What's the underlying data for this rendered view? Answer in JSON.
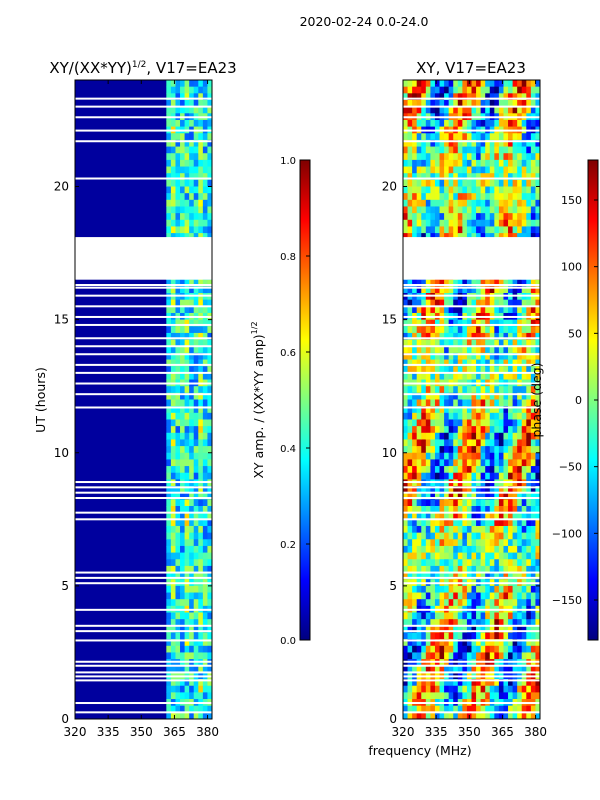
{
  "suptitle": "2020-02-24 0.0-24.0",
  "shared_xlabel": "frequency (MHz)",
  "colors": {
    "jet": [
      "#00007f",
      "#0000ff",
      "#007fff",
      "#00ffff",
      "#7fff7f",
      "#ffff00",
      "#ff7f00",
      "#ff0000",
      "#7f0000"
    ],
    "background_fill": "#00009e",
    "gap": "#ffffff"
  },
  "chart_data": [
    {
      "type": "heatmap",
      "title": "XY/(XX*YY)^{1/2}, V17=EA23",
      "title_plain": "XY/(XX*YY)",
      "title_sup": "1/2",
      "title_tail": ", V17=EA23",
      "xlabel": "",
      "ylabel": "UT (hours)",
      "xlim": [
        320,
        382
      ],
      "ylim": [
        0,
        24
      ],
      "xticks": [
        320,
        335,
        350,
        365,
        380
      ],
      "yticks": [
        0,
        5,
        10,
        15,
        20
      ],
      "bright_band_MHz": [
        360,
        382
      ],
      "missing_time_ranges": [
        [
          16.5,
          18.1
        ]
      ],
      "colorbar": {
        "label": "XY amp. / (XX*YY amp)",
        "label_sup": "1/2",
        "range": [
          0.0,
          1.0
        ],
        "ticks": [
          "0.0",
          "0.2",
          "0.4",
          "0.6",
          "0.8",
          "1.0"
        ],
        "tick_values": [
          0.0,
          0.2,
          0.4,
          0.6,
          0.8,
          1.0
        ]
      }
    },
    {
      "type": "heatmap",
      "title": "XY, V17=EA23",
      "xlabel": "frequency (MHz)",
      "ylabel": "",
      "xlim": [
        320,
        382
      ],
      "ylim": [
        0,
        24
      ],
      "xticks": [
        320,
        335,
        350,
        365,
        380
      ],
      "yticks": [
        0,
        5,
        10,
        15,
        20
      ],
      "missing_time_ranges": [
        [
          16.5,
          18.1
        ]
      ],
      "colorbar": {
        "label": "phase (deg)",
        "range": [
          -180,
          180
        ],
        "ticks": [
          "150",
          "100",
          "50",
          "0",
          "−50",
          "−100",
          "−150"
        ],
        "tick_values": [
          150,
          100,
          50,
          0,
          -50,
          -100,
          -150
        ]
      }
    }
  ],
  "gap_rows_hours": [
    0.25,
    0.6,
    1.45,
    1.6,
    1.75,
    2.0,
    2.15,
    2.95,
    3.3,
    3.5,
    4.1,
    5.1,
    5.3,
    5.5,
    7.5,
    7.75,
    8.3,
    8.5,
    8.7,
    8.9,
    11.7,
    12.2,
    12.6,
    13.0,
    13.3,
    13.7,
    14.0,
    14.3,
    14.8,
    15.1,
    15.5,
    15.9,
    16.2,
    16.3,
    20.3,
    21.7,
    22.1,
    22.6,
    23.0,
    23.3
  ]
}
